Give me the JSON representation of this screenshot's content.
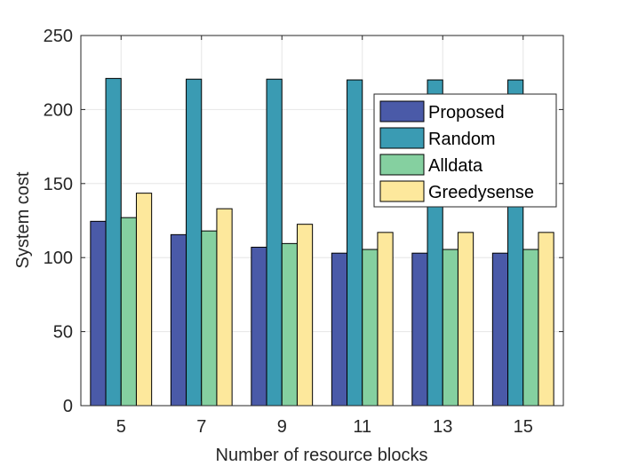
{
  "chart_data": {
    "type": "bar",
    "xlabel": "Number of resource blocks",
    "ylabel": "System cost",
    "categories": [
      "5",
      "7",
      "9",
      "11",
      "13",
      "15"
    ],
    "ylim": [
      0,
      250
    ],
    "yticks": [
      "0",
      "50",
      "100",
      "150",
      "200",
      "250"
    ],
    "grid": true,
    "legend_position": "top-right",
    "series": [
      {
        "name": "Proposed",
        "color": "#4a5aa8",
        "values": [
          124.5,
          115.5,
          107,
          103,
          103,
          103
        ]
      },
      {
        "name": "Random",
        "color": "#3a9bb3",
        "values": [
          221,
          220.5,
          220.5,
          220,
          220,
          220
        ]
      },
      {
        "name": "Alldata",
        "color": "#85d0a0",
        "values": [
          127,
          118,
          109.5,
          105.5,
          105.5,
          105.5
        ]
      },
      {
        "name": "Greedysense",
        "color": "#fde89c",
        "values": [
          143.5,
          133,
          122.5,
          117,
          117,
          117
        ]
      }
    ]
  }
}
